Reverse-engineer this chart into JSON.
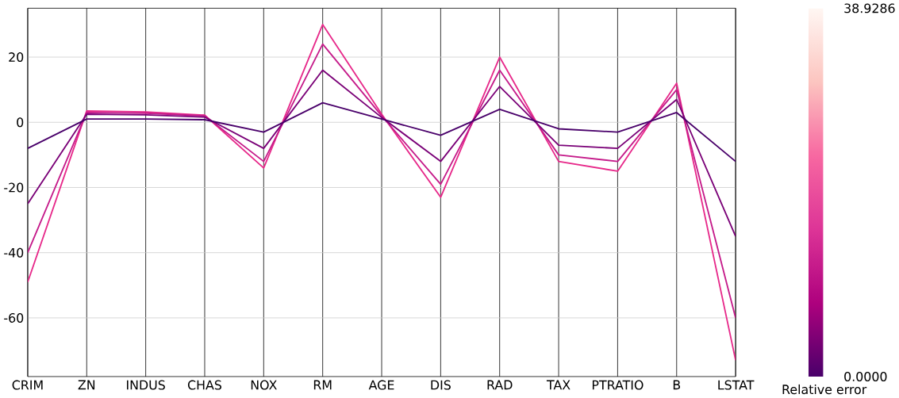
{
  "chart_data": {
    "type": "line",
    "categories": [
      "CRIM",
      "ZN",
      "INDUS",
      "CHAS",
      "NOX",
      "RM",
      "AGE",
      "DIS",
      "RAD",
      "TAX",
      "PTRATIO",
      "B",
      "LSTAT"
    ],
    "ylim": [
      -78,
      35
    ],
    "yticks": [
      -60,
      -40,
      -20,
      0,
      20
    ],
    "grid": true,
    "clabel": "Relative error",
    "clim": [
      0,
      38.9286
    ],
    "cticks": [
      {
        "value": 0,
        "label": "0.0000"
      },
      {
        "value": 38.9286,
        "label": "38.9286"
      }
    ],
    "series": [
      {
        "color": "#e7298a",
        "values": [
          -49,
          3.5,
          3.2,
          2.2,
          -14,
          30,
          2.5,
          -23,
          20,
          -12,
          -15,
          12,
          -73
        ]
      },
      {
        "color": "#c51b8a",
        "values": [
          -40,
          3,
          2.8,
          2,
          -12,
          24,
          2,
          -19,
          16,
          -10,
          -12,
          10,
          -60
        ]
      },
      {
        "color": "#7a0177",
        "values": [
          -25,
          2.5,
          2.3,
          1.6,
          -8,
          16,
          1.5,
          -12,
          11,
          -7,
          -8,
          7,
          -35
        ]
      },
      {
        "color": "#49006a",
        "values": [
          -8,
          1,
          1,
          0.8,
          -3,
          6,
          1,
          -4,
          4,
          -2,
          -3,
          3,
          -12
        ]
      }
    ]
  }
}
